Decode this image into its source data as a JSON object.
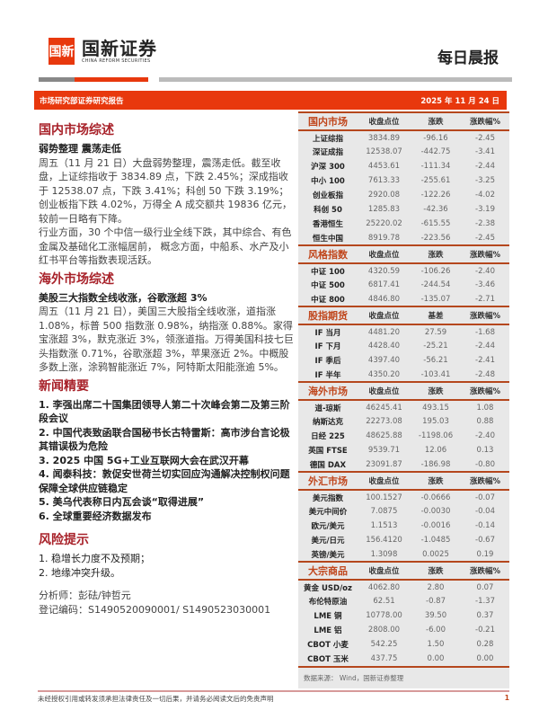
{
  "header": {
    "logo_mark": "国新",
    "company": "国新证券",
    "company_en": "CHINA REFORM SECURITIES",
    "report_type": "每日晨报",
    "banner_left": "市场研究部证券研究报告",
    "date": "2025 年 11 月 24 日"
  },
  "left": {
    "domestic": {
      "title": "国内市场综述",
      "subtitle": "弱势整理 震荡走低",
      "p1": "周五（11 月 21 日）大盘弱势整理，震荡走低。截至收盘，上证综指收于 3834.89 点，下跌 2.45%；深成指收于 12538.07 点，下跌 3.41%；科创 50 下跌 3.19%；创业板指下跌 4.02%，万得全 A 成交额共 19836 亿元，较前一日略有下降。",
      "p2": "行业方面，30 个中信一级行业全线下跌，其中综合、有色金属及基础化工涨幅居前， 概念方面，中船系、水产及小红书平台等指数表现活跃。"
    },
    "overseas": {
      "title": "海外市场综述",
      "subtitle": "美股三大指数全线收涨，谷歌涨超 3%",
      "p1": "周五（11 月 21 日），美国三大股指全线收涨，道指涨 1.08%，标普 500 指数涨 0.98%，纳指涨 0.88%。家得宝涨超 3%，默克涨近 3%，领涨道指。万得美国科技七巨头指数涨 0.71%，谷歌涨超 3%，苹果涨近 2%。中概股多数上涨，涂鸦智能涨近 7%，阿特斯太阳能涨逾 5%。"
    },
    "news": {
      "title": "新闻精要",
      "items": [
        "1. 李强出席二十国集团领导人第二十次峰会第二及第三阶段会议",
        "2. 中国代表致函联合国秘书长古特雷斯：高市涉台言论极其错误极为危险",
        "3. 2025 中国 5G+工业互联网大会在武汉开幕",
        "4. 闻泰科技：敦促安世荷兰切实回应沟通解决控制权问题 保障全球供应链稳定",
        "5. 美乌代表称日内瓦会谈“取得进展”",
        "6. 全球重要经济数据发布"
      ]
    },
    "risk": {
      "title": "风险提示",
      "items": [
        "1. 稳增长力度不及预期；",
        "2. 地缘冲突升级。"
      ]
    },
    "analyst": "分析师：彭砝/钟哲元",
    "reg": "登记编码：S1490520090001/ S1490523030001"
  },
  "table": {
    "sections": [
      {
        "title": "国内市场",
        "cols": [
          "收盘点位",
          "涨跌",
          "涨跌幅%"
        ],
        "rows": [
          [
            "上证综指",
            "3834.89",
            "-96.16",
            "-2.45"
          ],
          [
            "深证成指",
            "12538.07",
            "-442.75",
            "-3.41"
          ],
          [
            "沪深 300",
            "4453.61",
            "-111.34",
            "-2.44"
          ],
          [
            "中小 100",
            "7613.33",
            "-255.61",
            "-3.25"
          ],
          [
            "创业板指",
            "2920.08",
            "-122.26",
            "-4.02"
          ],
          [
            "科创 50",
            "1285.83",
            "-42.36",
            "-3.19"
          ],
          [
            "香港恒生",
            "25220.02",
            "-615.55",
            "-2.38"
          ],
          [
            "恒生中国",
            "8919.78",
            "-223.56",
            "-2.45"
          ]
        ]
      },
      {
        "title": "风格指数",
        "cols": [
          "收盘点位",
          "涨跌",
          "涨跌幅%"
        ],
        "rows": [
          [
            "中证 100",
            "4320.59",
            "-106.26",
            "-2.40"
          ],
          [
            "中证 500",
            "6817.41",
            "-244.54",
            "-3.46"
          ],
          [
            "中证 800",
            "4846.80",
            "-135.07",
            "-2.71"
          ]
        ]
      },
      {
        "title": "股指期货",
        "cols": [
          "收盘点位",
          "基差",
          "涨跌幅%"
        ],
        "rows": [
          [
            "IF 当月",
            "4481.20",
            "27.59",
            "-1.68"
          ],
          [
            "IF 下月",
            "4428.40",
            "-25.21",
            "-2.44"
          ],
          [
            "IF 季后",
            "4397.40",
            "-56.21",
            "-2.41"
          ],
          [
            "IF 半年",
            "4350.20",
            "-103.41",
            "-2.48"
          ]
        ]
      },
      {
        "title": "海外市场",
        "cols": [
          "收盘点位",
          "涨跌",
          "涨跌幅%"
        ],
        "rows": [
          [
            "道-琼斯",
            "46245.41",
            "493.15",
            "1.08"
          ],
          [
            "纳斯达克",
            "22273.08",
            "195.03",
            "0.88"
          ],
          [
            "日经 225",
            "48625.88",
            "-1198.06",
            "-2.40"
          ],
          [
            "英国 FTSE",
            "9539.71",
            "12.06",
            "0.13"
          ],
          [
            "德国 DAX",
            "23091.87",
            "-186.98",
            "-0.80"
          ]
        ]
      },
      {
        "title": "外汇市场",
        "cols": [
          "收盘点位",
          "涨跌",
          "涨跌幅%"
        ],
        "rows": [
          [
            "美元指数",
            "100.1527",
            "-0.0666",
            "-0.07"
          ],
          [
            "美元中间价",
            "7.0875",
            "-0.0030",
            "-0.04"
          ],
          [
            "欧元/美元",
            "1.1513",
            "-0.0016",
            "-0.14"
          ],
          [
            "美元/日元",
            "156.4120",
            "-1.0485",
            "-0.67"
          ],
          [
            "英镑/美元",
            "1.3098",
            "0.0025",
            "0.19"
          ]
        ]
      },
      {
        "title": "大宗商品",
        "cols": [
          "收盘点位",
          "涨跌",
          "涨跌幅%"
        ],
        "rows": [
          [
            "黄金 USD/oz",
            "4062.80",
            "2.80",
            "0.07"
          ],
          [
            "布伦特原油",
            "62.51",
            "-0.87",
            "-1.37"
          ],
          [
            "LME 铜",
            "10778.00",
            "39.50",
            "0.37"
          ],
          [
            "LME 铝",
            "2808.00",
            "-6.00",
            "-0.21"
          ],
          [
            "CBOT 小麦",
            "542.25",
            "1.50",
            "0.28"
          ],
          [
            "CBOT 玉米",
            "437.75",
            "0.00",
            "0.00"
          ]
        ]
      }
    ],
    "source": "数据来源： Wind，国新证券整理"
  },
  "footer": {
    "disclaimer": "未经授权引用或转发须承担法律责任及一切后果，并请务必阅读文后的免责声明",
    "page": "1"
  },
  "colors": {
    "brand": "#e8380d",
    "heading": "#a8222a"
  }
}
